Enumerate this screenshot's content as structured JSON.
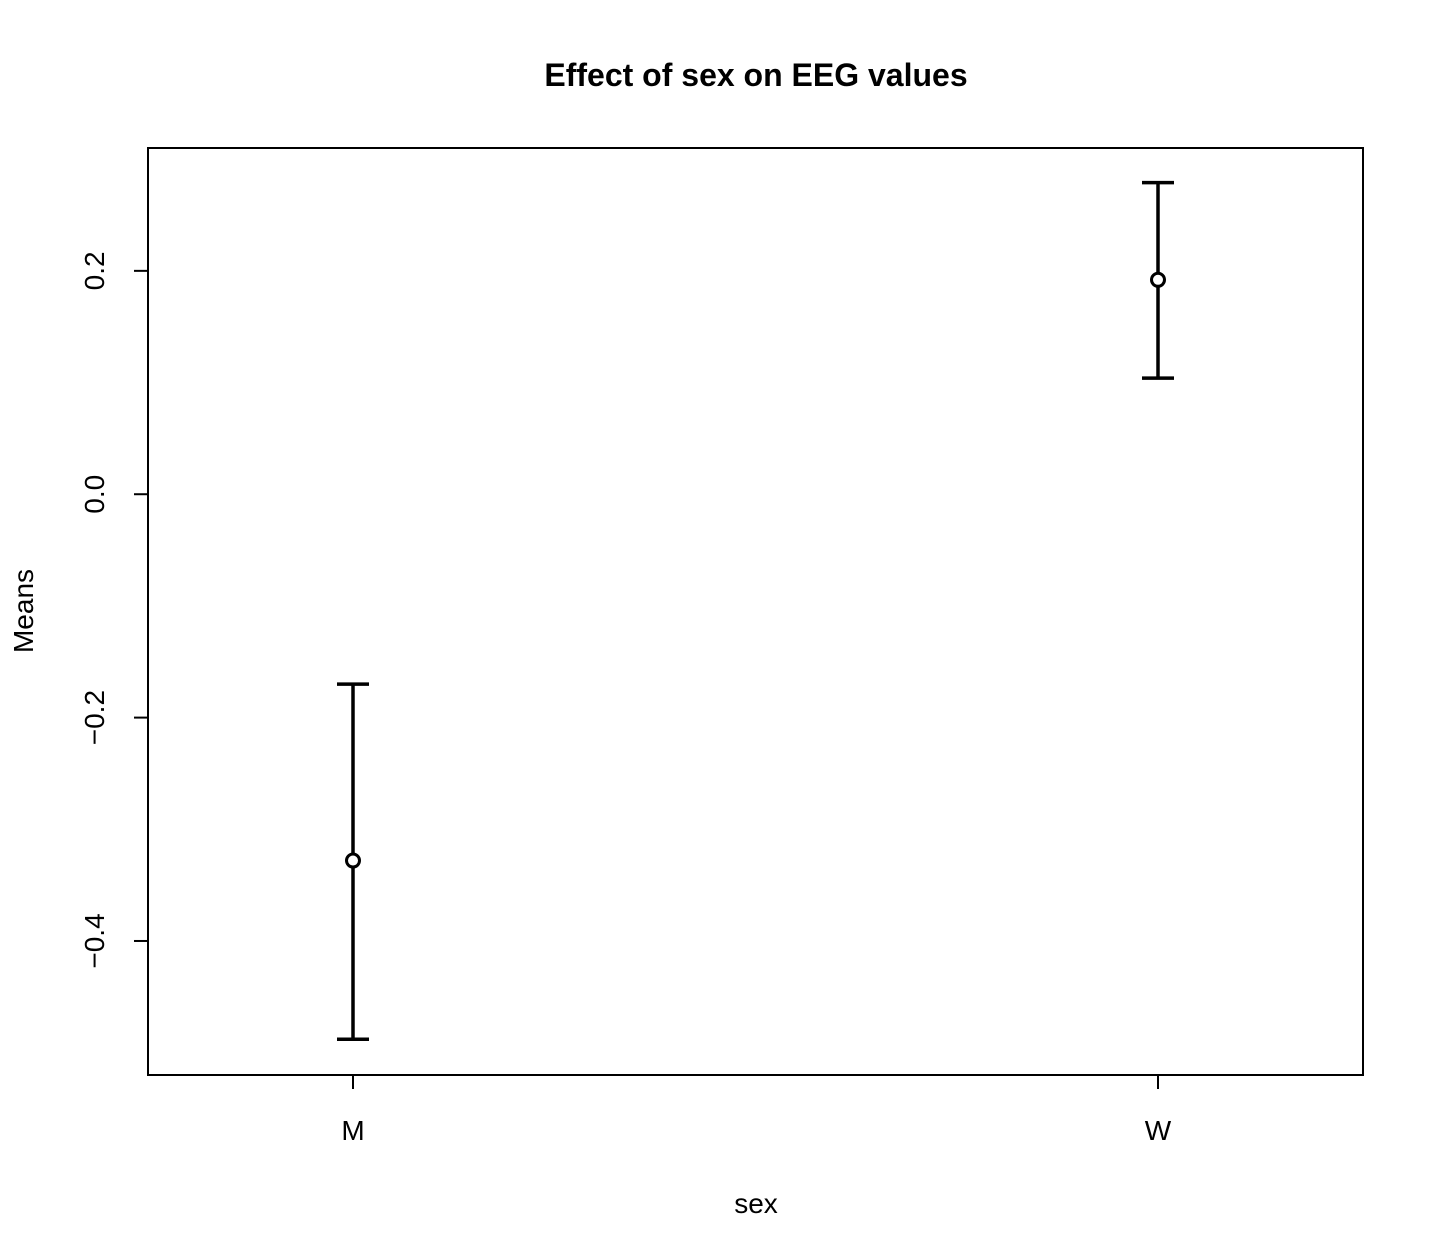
{
  "chart_data": {
    "type": "errorbar",
    "title": "Effect of sex on EEG values",
    "xlabel": "sex",
    "ylabel": "Means",
    "categories": [
      "M",
      "W"
    ],
    "means": [
      -0.328,
      0.192
    ],
    "upper": [
      -0.17,
      0.279
    ],
    "lower": [
      -0.488,
      0.104
    ],
    "ylim": [
      -0.52,
      0.31
    ],
    "yticks": [
      -0.4,
      -0.2,
      0.0,
      0.2
    ],
    "ytick_labels": [
      "−0.4",
      "−0.2",
      "0.0",
      "0.2"
    ],
    "grid": false,
    "legend": "none"
  }
}
